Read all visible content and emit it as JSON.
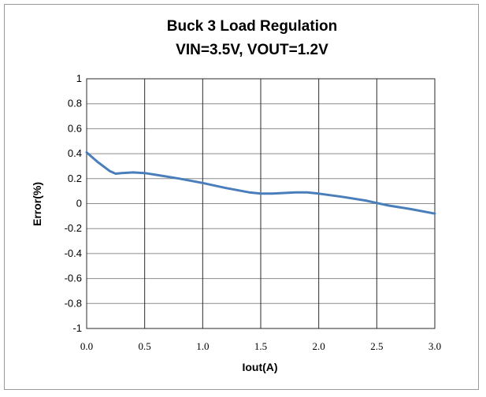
{
  "chart_data": {
    "type": "line",
    "title": "Buck 3 Load Regulation",
    "subtitle": "VIN=3.5V, VOUT=1.2V",
    "xlabel": "Iout(A)",
    "ylabel": "Error(%)",
    "xlim": [
      0,
      3
    ],
    "ylim": [
      -1,
      1
    ],
    "x_ticks": [
      0,
      0.5,
      1,
      1.5,
      2,
      2.5,
      3
    ],
    "x_tick_labels": [
      "0.0",
      "0.5",
      "1.0",
      "1.5",
      "2.0",
      "2.5",
      "3.0"
    ],
    "y_ticks": [
      1,
      0.8,
      0.6,
      0.4,
      0.2,
      0,
      -0.2,
      -0.4,
      -0.6,
      -0.8,
      -1
    ],
    "y_tick_labels": [
      "1",
      "0.8",
      "0.6",
      "0.4",
      "0.2",
      "0",
      "-0.2",
      "-0.4",
      "-0.6",
      "-0.8",
      "-1"
    ],
    "grid": true,
    "legend": "none",
    "line_color": "#4a7ebb",
    "series": [
      {
        "x": [
          0,
          0.1,
          0.2,
          0.25,
          0.3,
          0.4,
          0.5,
          0.6,
          0.8,
          1.0,
          1.2,
          1.4,
          1.5,
          1.6,
          1.8,
          1.9,
          2.0,
          2.2,
          2.4,
          2.5,
          2.6,
          2.8,
          3.0
        ],
        "values": [
          0.41,
          0.33,
          0.26,
          0.24,
          0.245,
          0.25,
          0.245,
          0.23,
          0.2,
          0.165,
          0.125,
          0.09,
          0.08,
          0.08,
          0.09,
          0.09,
          0.08,
          0.055,
          0.025,
          0.005,
          -0.015,
          -0.045,
          -0.08
        ]
      }
    ]
  }
}
